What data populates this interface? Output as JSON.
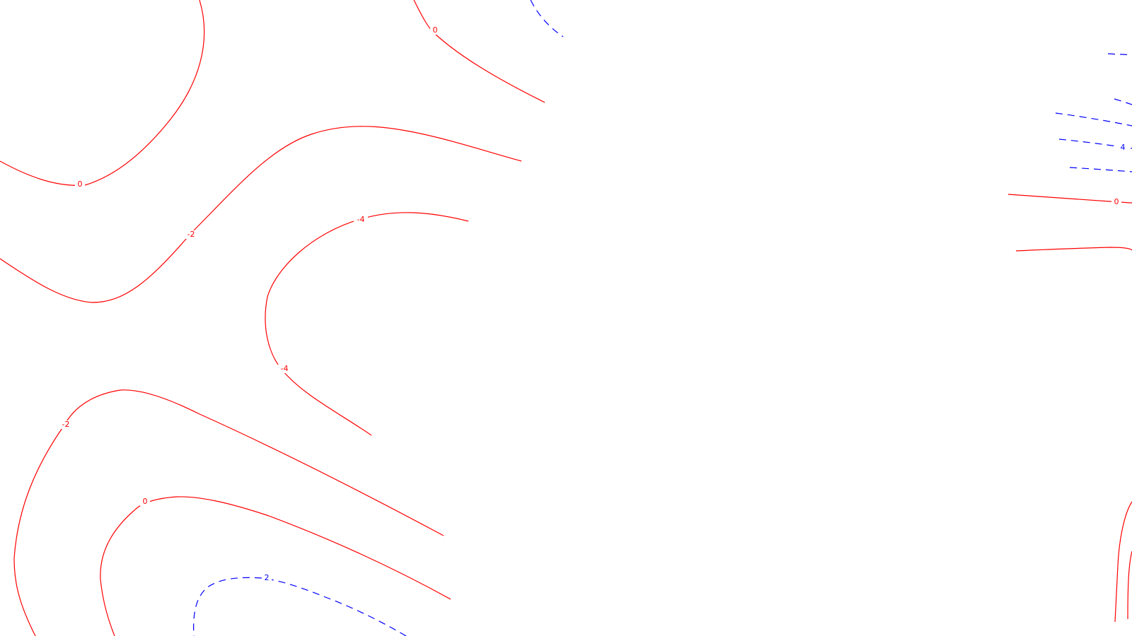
{
  "colors": {
    "background": "#ffffff",
    "negative_line": "#ff0000",
    "positive_line": "#0000ff"
  },
  "contour_plot": {
    "line_styles": {
      "negative_and_zero": "solid",
      "positive": "dashed"
    },
    "labels": [
      {
        "id": "label-0-top",
        "text": "0"
      },
      {
        "id": "label-0-left",
        "text": "0"
      },
      {
        "id": "label-neg2-mid",
        "text": "-2"
      },
      {
        "id": "label-neg4-top",
        "text": "-4"
      },
      {
        "id": "label-neg4-bottom",
        "text": "-4"
      },
      {
        "id": "label-neg2-bottom",
        "text": "-2"
      },
      {
        "id": "label-0-bottom",
        "text": "0"
      },
      {
        "id": "label-2-bottom",
        "text": "2"
      },
      {
        "id": "label-4-right",
        "text": "4"
      },
      {
        "id": "label-0-right",
        "text": "0"
      }
    ]
  }
}
